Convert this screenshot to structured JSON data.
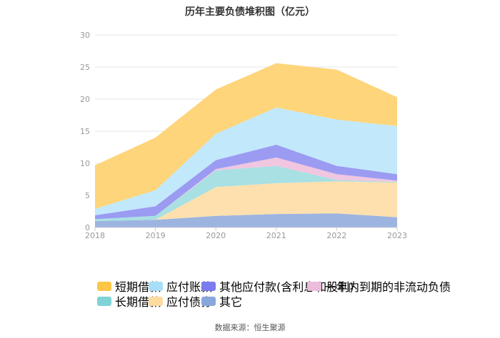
{
  "chart_data": {
    "type": "area",
    "stacked": true,
    "title": "历年主要负债堆积图（亿元）",
    "x": [
      "2018",
      "2019",
      "2020",
      "2021",
      "2022",
      "2023"
    ],
    "ylim": [
      0,
      30
    ],
    "yticks": [
      "0",
      "5",
      "10",
      "15",
      "20",
      "25",
      "30"
    ],
    "grid": true,
    "legend_position": "bottom",
    "series": [
      {
        "name": "其它",
        "color": "#9db4e0",
        "values": [
          1.0,
          1.2,
          1.8,
          2.1,
          2.2,
          1.6
        ]
      },
      {
        "name": "应付债券",
        "color": "#fde0ad",
        "values": [
          0.0,
          0.0,
          4.5,
          4.8,
          5.0,
          5.4
        ]
      },
      {
        "name": "长期借款",
        "color": "#a8e0e3",
        "values": [
          0.3,
          0.6,
          2.6,
          2.7,
          0.2,
          0.1
        ]
      },
      {
        "name": "一年内到期的非流动负债",
        "color": "#f0c6e0",
        "values": [
          0.0,
          0.0,
          0.2,
          1.3,
          0.9,
          0.2
        ]
      },
      {
        "name": "其他应付款(含利息和股利)",
        "color": "#9b9bf2",
        "values": [
          0.6,
          1.5,
          1.4,
          2.0,
          1.3,
          1.0
        ]
      },
      {
        "name": "应付账款",
        "color": "#c2e8fb",
        "values": [
          1.0,
          2.5,
          4.1,
          5.8,
          7.2,
          7.5
        ]
      },
      {
        "name": "短期借款",
        "color": "#fed57a",
        "values": [
          6.8,
          8.2,
          6.9,
          6.9,
          7.8,
          4.5
        ]
      }
    ]
  },
  "legend": {
    "row1": [
      {
        "label": "短期借款",
        "color": "#fdc646"
      },
      {
        "label": "应付账款",
        "color": "#a8dff8"
      },
      {
        "label": "其他应付款(含利息和股利)",
        "color": "#7b7bf0"
      },
      {
        "label": "一年内到期的非流动负债",
        "color": "#ebbddb"
      }
    ],
    "row2": [
      {
        "label": "长期借款",
        "color": "#7fd3d6"
      },
      {
        "label": "应付债券",
        "color": "#fddc9f"
      },
      {
        "label": "其它",
        "color": "#8aa7dc"
      }
    ]
  },
  "source": "数据来源：恒生聚源"
}
